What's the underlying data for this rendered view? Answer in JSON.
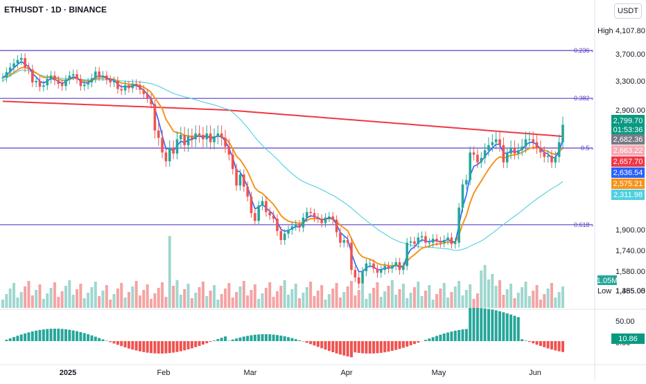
{
  "header": {
    "title": "ETHUSDT · 1D · BINANCE",
    "currency": "USDT"
  },
  "chart_data": {
    "type": "candlestick",
    "symbol": "ETHUSDT",
    "interval": "1D",
    "exchange": "BINANCE",
    "y_axis_ticks": [
      "3,700.00",
      "3,300.00",
      "2,900.00",
      "1,900.00",
      "1,740.00",
      "1,580.00",
      "1,455.00"
    ],
    "x_axis_ticks": [
      "2025",
      "Feb",
      "Mar",
      "Apr",
      "May",
      "Jun"
    ],
    "high": {
      "label": "High",
      "value": "4,107.80"
    },
    "low": {
      "label": "Low",
      "value": "1,385.05"
    },
    "last_price": {
      "value": "2,799.70",
      "countdown": "01:53:36",
      "color": "#089981"
    },
    "price_labels": [
      {
        "value": "2,682.36",
        "color": "#787b86"
      },
      {
        "value": "2,663.22",
        "color": "#f7a9b4"
      },
      {
        "value": "2,657.70",
        "color": "#f23645"
      },
      {
        "value": "2,636.54",
        "color": "#2962ff"
      },
      {
        "value": "2,575.21",
        "color": "#f7931a"
      },
      {
        "value": "2,311.98",
        "color": "#4dd0e1"
      }
    ],
    "fib_levels": [
      {
        "label": "0.236",
        "price": 3760
      },
      {
        "label": "0.382",
        "price": 3060
      },
      {
        "label": "0.5",
        "price": 2640
      },
      {
        "label": "0.618",
        "price": 1945
      }
    ],
    "volume": {
      "label": "1.05M"
    },
    "oscillator": {
      "ticks": [
        "50.00",
        "0.00"
      ],
      "value": "10.86",
      "color": "#089981"
    },
    "colors": {
      "up": "#26a69a",
      "down": "#ef5350",
      "fib": "#5b3cc4",
      "ema200": "#f23645",
      "ema_fast": "#f7931a",
      "ma_slow": "#4dd0e1"
    },
    "series_closes": [
      3350,
      3430,
      3500,
      3560,
      3610,
      3640,
      3500,
      3470,
      3280,
      3300,
      3220,
      3240,
      3330,
      3380,
      3310,
      3260,
      3230,
      3320,
      3380,
      3400,
      3330,
      3230,
      3250,
      3280,
      3340,
      3440,
      3370,
      3380,
      3320,
      3280,
      3300,
      3190,
      3170,
      3240,
      3200,
      3260,
      3240,
      3180,
      3120,
      3060,
      2980,
      2760,
      2710,
      2600,
      2520,
      2640,
      2590,
      2700,
      2730,
      2660,
      2720,
      2700,
      2740,
      2730,
      2700,
      2740,
      2680,
      2720,
      2740,
      2710,
      2650,
      2580,
      2450,
      2300,
      2400,
      2290,
      2200,
      2050,
      1980,
      2120,
      2160,
      2060,
      2030,
      2000,
      1890,
      1820,
      1870,
      1900,
      1930,
      1950,
      1920,
      2010,
      2060,
      2050,
      2010,
      2000,
      1960,
      2010,
      2020,
      1990,
      1880,
      1800,
      1820,
      1800,
      1590,
      1540,
      1500,
      1580,
      1640,
      1640,
      1600,
      1570,
      1590,
      1620,
      1600,
      1620,
      1650,
      1590,
      1620,
      1800,
      1810,
      1790,
      1840,
      1850,
      1800,
      1800,
      1830,
      1810,
      1800,
      1820,
      1840,
      1790,
      1800,
      2100,
      2310,
      2350,
      2600,
      2580,
      2510,
      2550,
      2620,
      2660,
      2680,
      2700,
      2660,
      2510,
      2590,
      2640,
      2590,
      2620,
      2650,
      2700,
      2700,
      2680,
      2640,
      2600,
      2560,
      2570,
      2510,
      2560,
      2680,
      2799.7
    ],
    "fib_sample": {
      "high": 4107.8,
      "low": 1385.05
    }
  }
}
